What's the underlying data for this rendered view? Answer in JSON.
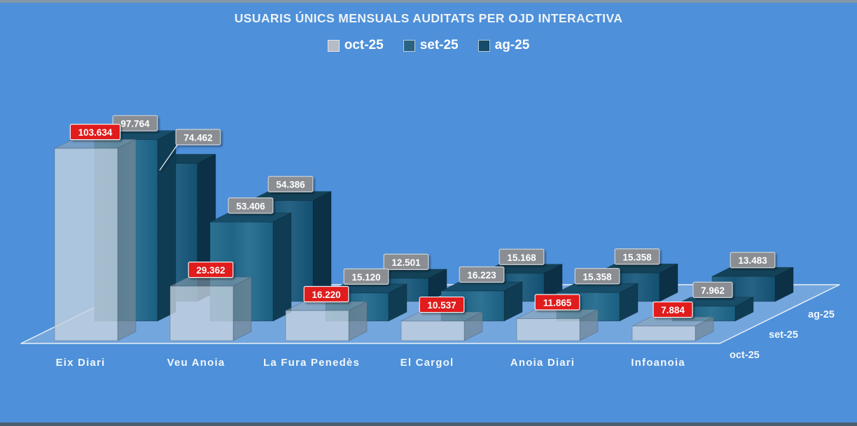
{
  "title": "USUARIS ÚNICS MENSUALS AUDITATS PER OJD INTERACTIVA",
  "legend": [
    {
      "label": "oct-25",
      "color": "#b4bdc6"
    },
    {
      "label": "set-25",
      "color": "#2b6384"
    },
    {
      "label": "ag-25",
      "color": "#174b67"
    }
  ],
  "colors": {
    "background": "#4e90d9",
    "top_border": "#8499a9",
    "bottom_border": "#4a5e70",
    "floor_fill": "rgba(205,220,235,0.30)",
    "floor_edge": "#e6eef6",
    "value_label_text": "#ffffff",
    "axis_text": "#f2f7fc"
  },
  "label_styles": {
    "red": {
      "bg": "#e01b1b",
      "border": "#f0f0f0"
    },
    "gray": {
      "bg": "#8a8e93",
      "border": "#ccd1d6"
    }
  },
  "chart_data": {
    "type": "bar",
    "projection": "3d-depth",
    "title": "USUARIS ÚNICS MENSUALS AUDITATS PER OJD INTERACTIVA",
    "categories": [
      "Eix Diari",
      "Veu Anoia",
      "La Fura Penedès",
      "El Cargol",
      "Anoia Diari",
      "Infoanoia"
    ],
    "depth_axis_labels": [
      "oct-25",
      "set-25",
      "ag-25"
    ],
    "value_label_format": "thousands-dot",
    "legend_position": "top",
    "series": [
      {
        "name": "oct-25",
        "label_style": "red",
        "values": [
          103634,
          29362,
          16220,
          10537,
          11865,
          7884
        ],
        "display_values": [
          "103.634",
          "29.362",
          "16.220",
          "10.537",
          "11.865",
          "7.884"
        ],
        "faces": {
          "front": "rgba(196,210,222,0.80)",
          "top": "rgba(150,165,178,0.55)",
          "side": "rgba(118,136,150,0.72)",
          "stroke": "rgba(70,90,110,0.5)"
        }
      },
      {
        "name": "set-25",
        "label_style": "gray",
        "values": [
          97764,
          53406,
          15120,
          16223,
          15358,
          7962
        ],
        "display_values": [
          "97.764",
          "53.406",
          "15.120",
          "16.223",
          "15.358",
          "7.962"
        ],
        "faces": {
          "front": "#226688",
          "top": "#174d68",
          "side": "#103c53",
          "stroke": "rgba(8,25,38,0.4)"
        }
      },
      {
        "name": "ag-25",
        "label_style": "gray",
        "values": [
          74462,
          54386,
          12501,
          15168,
          15358,
          13483
        ],
        "display_values": [
          "74.462",
          "54.386",
          "12.501",
          "15.168",
          "15.358",
          "13.483"
        ],
        "callout_points": [
          0
        ],
        "faces": {
          "front": "#1b5778",
          "top": "#134258",
          "side": "#0c3147",
          "stroke": "rgba(8,25,38,0.4)"
        }
      }
    ]
  }
}
